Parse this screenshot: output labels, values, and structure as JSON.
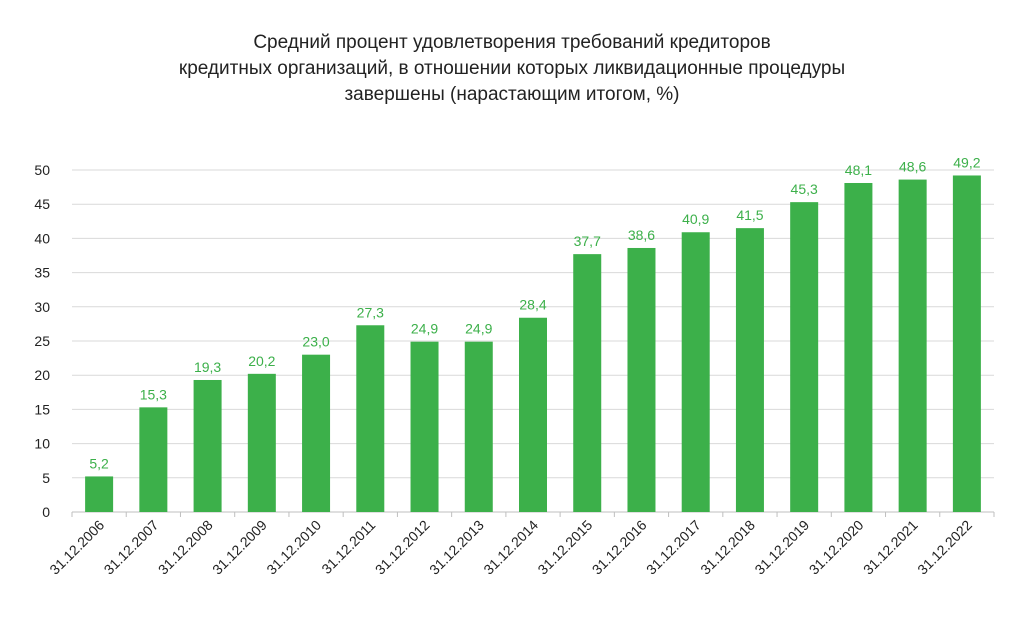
{
  "chart_data": {
    "type": "bar",
    "title_lines": [
      "Средний процент удовлетворения требований кредиторов",
      "кредитных организаций, в отношении которых ликвидационные процедуры",
      "завершены (нарастающим итогом, %)"
    ],
    "categories": [
      "31.12.2006",
      "31.12.2007",
      "31.12.2008",
      "31.12.2009",
      "31.12.2010",
      "31.12.2011",
      "31.12.2012",
      "31.12.2013",
      "31.12.2014",
      "31.12.2015",
      "31.12.2016",
      "31.12.2017",
      "31.12.2018",
      "31.12.2019",
      "31.12.2020",
      "31.12.2021",
      "31.12.2022"
    ],
    "values": [
      5.2,
      15.3,
      19.3,
      20.2,
      23.0,
      27.3,
      24.9,
      24.9,
      28.4,
      37.7,
      38.6,
      40.9,
      41.5,
      45.3,
      48.1,
      48.6,
      49.2
    ],
    "data_labels": [
      "5,2",
      "15,3",
      "19,3",
      "20,2",
      "23,0",
      "27,3",
      "24,9",
      "24,9",
      "28,4",
      "37,7",
      "38,6",
      "40,9",
      "41,5",
      "45,3",
      "48,1",
      "48,6",
      "49,2"
    ],
    "y_ticks": [
      "0",
      "5",
      "10",
      "15",
      "20",
      "25",
      "30",
      "35",
      "40",
      "45",
      "50"
    ],
    "ylim": [
      0,
      50
    ],
    "grid": true,
    "legend": false,
    "colors": {
      "bar": "#3cb04a",
      "data_label": "#3cb04a",
      "grid": "#d9d9d9",
      "axis": "#bfbfbf",
      "text": "#222222"
    }
  }
}
